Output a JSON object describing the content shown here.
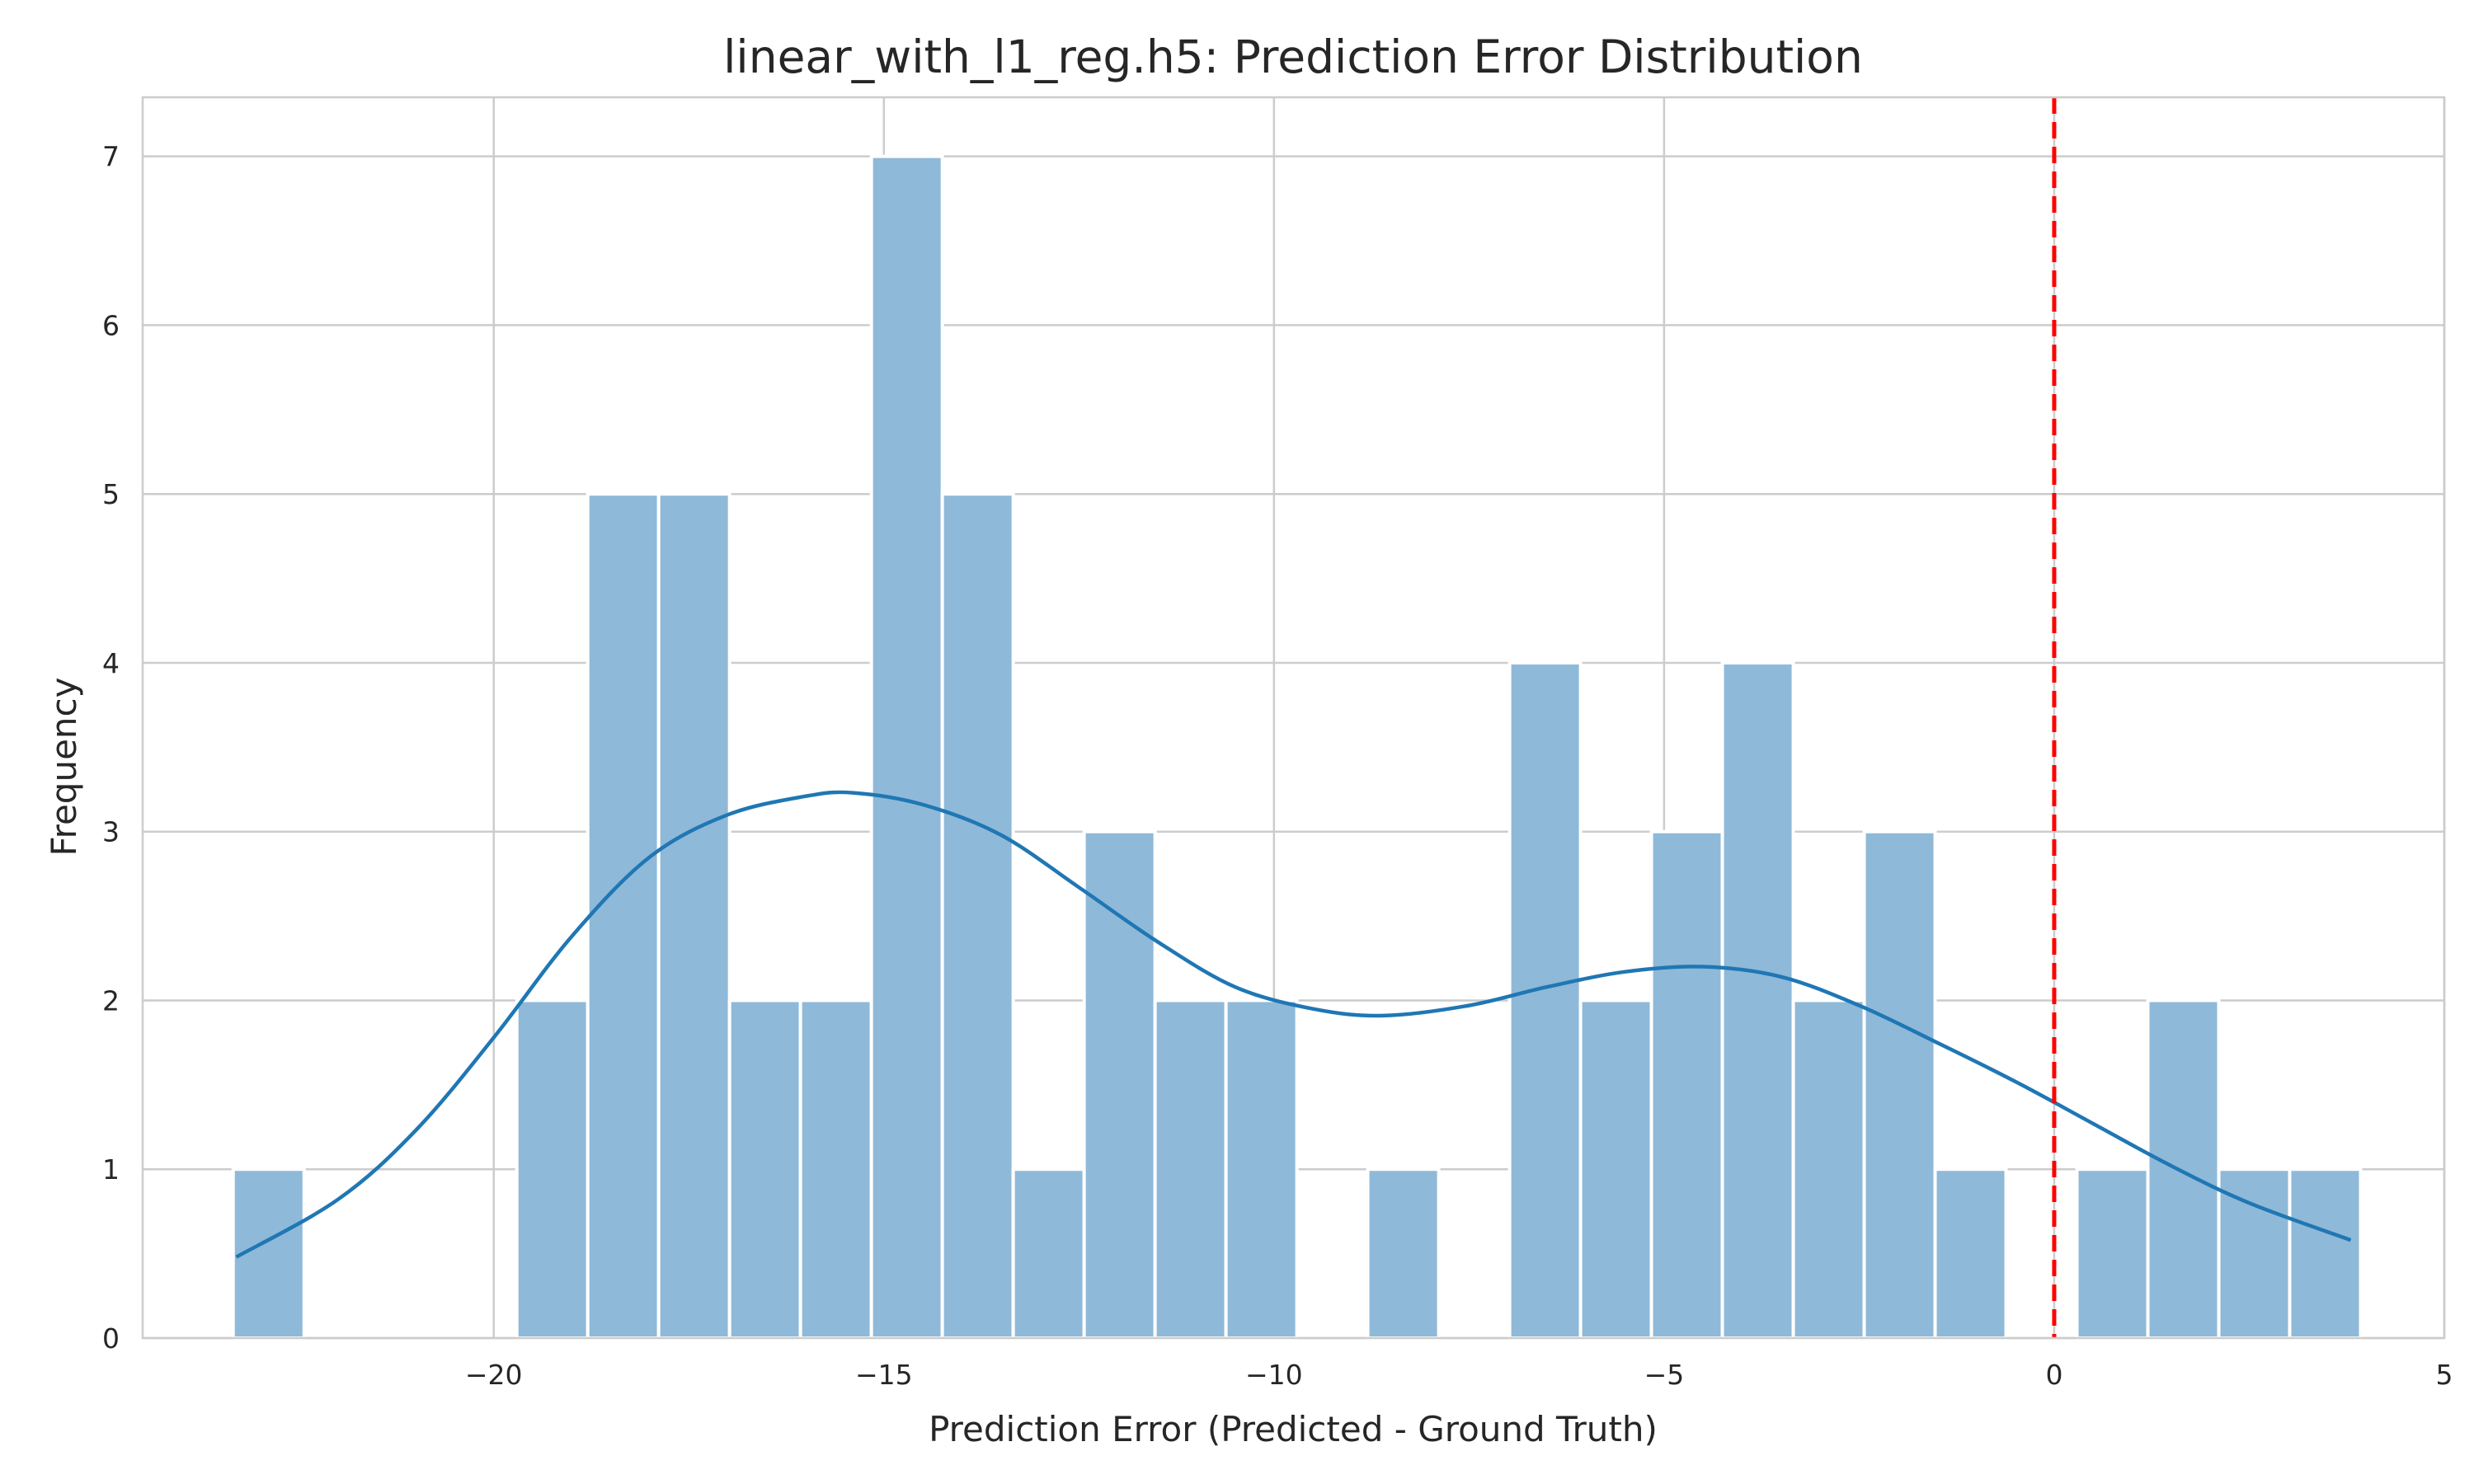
{
  "chart_data": {
    "type": "bar",
    "title": "linear_with_l1_reg.h5: Prediction Error Distribution",
    "xlabel": "Prediction Error (Predicted - Ground Truth)",
    "ylabel": "Frequency",
    "xlim": [
      -24.5,
      5.0
    ],
    "ylim": [
      0,
      7.35
    ],
    "xticks": [
      -20,
      -15,
      -10,
      -5,
      0,
      5
    ],
    "xtick_labels": [
      "−20",
      "−15",
      "−10",
      "−5",
      "0",
      "5"
    ],
    "yticks": [
      0,
      1,
      2,
      3,
      4,
      5,
      6,
      7
    ],
    "ytick_labels": [
      "0",
      "1",
      "2",
      "3",
      "4",
      "5",
      "6",
      "7"
    ],
    "grid": true,
    "bin_start": -23.34,
    "bin_width": 0.9089,
    "counts": [
      1,
      0,
      0,
      0,
      2,
      5,
      5,
      2,
      2,
      7,
      5,
      1,
      3,
      2,
      2,
      0,
      1,
      0,
      4,
      2,
      3,
      4,
      2,
      3,
      1,
      0,
      1,
      2,
      1,
      1
    ],
    "bar_color": "#8fb9d8",
    "kde": {
      "color": "#1f77b4",
      "x": [
        -23.3,
        -22.0,
        -21.0,
        -20.0,
        -19.0,
        -18.0,
        -17.0,
        -16.0,
        -15.4,
        -14.5,
        -13.5,
        -12.5,
        -11.5,
        -10.5,
        -9.5,
        -8.6,
        -7.5,
        -6.5,
        -5.5,
        -4.5,
        -3.5,
        -2.5,
        -1.5,
        -0.5,
        0.5,
        1.5,
        2.5,
        3.8
      ],
      "y": [
        0.48,
        0.82,
        1.23,
        1.78,
        2.38,
        2.85,
        3.1,
        3.21,
        3.23,
        3.16,
        2.98,
        2.67,
        2.35,
        2.08,
        1.95,
        1.91,
        1.97,
        2.08,
        2.17,
        2.2,
        2.14,
        1.97,
        1.75,
        1.52,
        1.27,
        1.02,
        0.8,
        0.58
      ]
    },
    "reference_line": {
      "x": 0,
      "color": "#ff0000",
      "style": "dashed"
    }
  }
}
